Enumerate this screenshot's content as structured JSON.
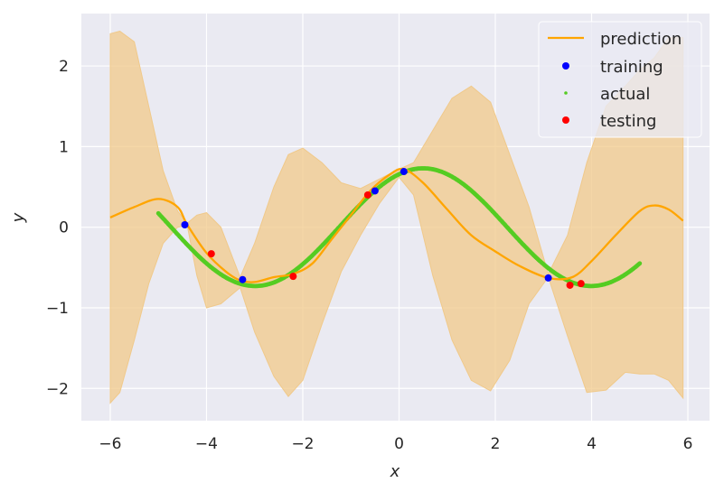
{
  "chart_data": {
    "type": "line",
    "title": "",
    "xlabel": "x",
    "ylabel": "y",
    "xlim": [
      -6.6,
      6.45
    ],
    "ylim": [
      -2.4,
      2.65
    ],
    "xticks": [
      -6,
      -4,
      -2,
      0,
      2,
      4,
      6
    ],
    "yticks": [
      -2,
      -1,
      0,
      1,
      2
    ],
    "xtick_labels": [
      "−6",
      "−4",
      "−2",
      "0",
      "2",
      "4",
      "6"
    ],
    "ytick_labels": [
      "−2",
      "−1",
      "0",
      "1",
      "2"
    ],
    "grid": true,
    "legend_position": "top-right",
    "colors": {
      "prediction": "#ffa500",
      "band": "#f2c98a",
      "training": "#0000ff",
      "actual": "#55cc22",
      "testing": "#ff0000",
      "plot_bg": "#eaeaf2"
    },
    "series": [
      {
        "name": "prediction",
        "kind": "line",
        "x": [
          -6.0,
          -5.5,
          -5.0,
          -4.6,
          -4.4,
          -4.0,
          -3.6,
          -3.3,
          -3.0,
          -2.6,
          -2.2,
          -1.8,
          -1.4,
          -1.0,
          -0.6,
          -0.2,
          0.1,
          0.5,
          1.0,
          1.5,
          2.0,
          2.5,
          3.1,
          3.6,
          4.0,
          4.5,
          5.0,
          5.3,
          5.6,
          5.9
        ],
        "y": [
          0.12,
          0.25,
          0.35,
          0.25,
          0.03,
          -0.32,
          -0.55,
          -0.66,
          -0.68,
          -0.62,
          -0.58,
          -0.45,
          -0.15,
          0.15,
          0.45,
          0.65,
          0.72,
          0.55,
          0.22,
          -0.1,
          -0.3,
          -0.48,
          -0.63,
          -0.62,
          -0.42,
          -0.1,
          0.2,
          0.27,
          0.22,
          0.08
        ]
      },
      {
        "name": "uncertainty band",
        "kind": "band",
        "x": [
          -6.0,
          -5.8,
          -5.5,
          -5.2,
          -4.9,
          -4.6,
          -4.4,
          -4.2,
          -4.0,
          -3.7,
          -3.3,
          -3.0,
          -2.6,
          -2.3,
          -2.0,
          -1.6,
          -1.2,
          -0.8,
          -0.4,
          0.0,
          0.3,
          0.7,
          1.1,
          1.5,
          1.9,
          2.3,
          2.7,
          3.1,
          3.5,
          3.9,
          4.3,
          4.7,
          5.0,
          5.3,
          5.6,
          5.9
        ],
        "upper": [
          2.4,
          2.43,
          2.3,
          1.5,
          0.7,
          0.2,
          0.05,
          0.15,
          0.18,
          0.0,
          -0.62,
          -0.2,
          0.5,
          0.9,
          0.98,
          0.8,
          0.55,
          0.48,
          0.6,
          0.72,
          0.8,
          1.2,
          1.6,
          1.75,
          1.55,
          0.9,
          0.25,
          -0.58,
          -0.1,
          0.8,
          1.5,
          1.75,
          1.95,
          2.1,
          2.35,
          2.35
        ],
        "lower": [
          -2.18,
          -2.05,
          -1.4,
          -0.7,
          -0.2,
          0.0,
          0.02,
          -0.6,
          -1.0,
          -0.95,
          -0.75,
          -1.3,
          -1.85,
          -2.1,
          -1.9,
          -1.2,
          -0.55,
          -0.1,
          0.3,
          0.62,
          0.4,
          -0.6,
          -1.4,
          -1.9,
          -2.03,
          -1.65,
          -0.95,
          -0.62,
          -1.35,
          -2.05,
          -2.02,
          -1.8,
          -1.82,
          -1.82,
          -1.9,
          -2.12
        ]
      },
      {
        "name": "actual",
        "kind": "dense_points",
        "x_range": [
          -5.0,
          5.0
        ],
        "note": "sin-like curve"
      },
      {
        "name": "training",
        "kind": "scatter",
        "x": [
          -4.45,
          -3.25,
          -0.5,
          0.1,
          3.1
        ],
        "y": [
          0.03,
          -0.65,
          0.45,
          0.69,
          -0.63
        ]
      },
      {
        "name": "testing",
        "kind": "scatter",
        "x": [
          -3.9,
          -2.2,
          -0.65,
          3.55,
          3.78
        ],
        "y": [
          -0.33,
          -0.61,
          0.4,
          -0.72,
          -0.7
        ]
      }
    ],
    "legend": [
      "prediction",
      "training",
      "actual",
      "testing"
    ]
  }
}
